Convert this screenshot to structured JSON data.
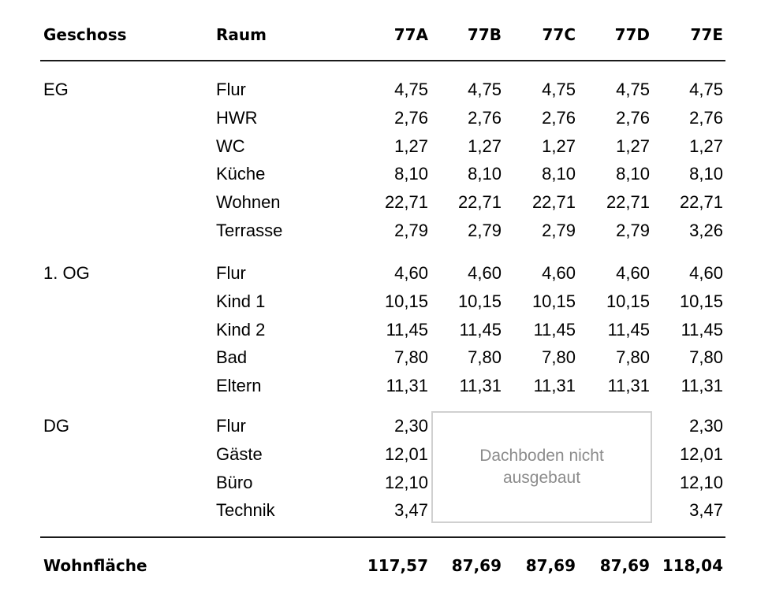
{
  "header": {
    "geschoss": "Geschoss",
    "raum": "Raum",
    "units": [
      "77A",
      "77B",
      "77C",
      "77D",
      "77E"
    ]
  },
  "groups": [
    {
      "geschoss": "EG",
      "rows": [
        {
          "raum": "Flur",
          "values": [
            "4,75",
            "4,75",
            "4,75",
            "4,75",
            "4,75"
          ]
        },
        {
          "raum": "HWR",
          "values": [
            "2,76",
            "2,76",
            "2,76",
            "2,76",
            "2,76"
          ]
        },
        {
          "raum": "WC",
          "values": [
            "1,27",
            "1,27",
            "1,27",
            "1,27",
            "1,27"
          ]
        },
        {
          "raum": "Küche",
          "values": [
            "8,10",
            "8,10",
            "8,10",
            "8,10",
            "8,10"
          ]
        },
        {
          "raum": "Wohnen",
          "values": [
            "22,71",
            "22,71",
            "22,71",
            "22,71",
            "22,71"
          ]
        },
        {
          "raum": "Terrasse",
          "values": [
            "2,79",
            "2,79",
            "2,79",
            "2,79",
            "3,26"
          ]
        }
      ]
    },
    {
      "geschoss": "1. OG",
      "rows": [
        {
          "raum": "Flur",
          "values": [
            "4,60",
            "4,60",
            "4,60",
            "4,60",
            "4,60"
          ]
        },
        {
          "raum": "Kind 1",
          "values": [
            "10,15",
            "10,15",
            "10,15",
            "10,15",
            "10,15"
          ]
        },
        {
          "raum": "Kind 2",
          "values": [
            "11,45",
            "11,45",
            "11,45",
            "11,45",
            "11,45"
          ]
        },
        {
          "raum": "Bad",
          "values": [
            "7,80",
            "7,80",
            "7,80",
            "7,80",
            "7,80"
          ]
        },
        {
          "raum": "Eltern",
          "values": [
            "11,31",
            "11,31",
            "11,31",
            "11,31",
            "11,31"
          ]
        }
      ]
    },
    {
      "geschoss": "DG",
      "rows": [
        {
          "raum": "Flur",
          "values": [
            "2,30",
            "",
            "",
            "",
            "2,30"
          ]
        },
        {
          "raum": "Gäste",
          "values": [
            "12,01",
            "",
            "",
            "",
            "12,01"
          ]
        },
        {
          "raum": "Büro",
          "values": [
            "12,10",
            "",
            "",
            "",
            "12,10"
          ]
        },
        {
          "raum": "Technik",
          "values": [
            "3,47",
            "",
            "",
            "",
            "3,47"
          ]
        }
      ]
    }
  ],
  "note": {
    "line1": "Dachboden nicht",
    "line2": "ausgebaut"
  },
  "total": {
    "label": "Wohnfläche",
    "values": [
      "117,57",
      "87,69",
      "87,69",
      "87,69",
      "118,04"
    ]
  }
}
